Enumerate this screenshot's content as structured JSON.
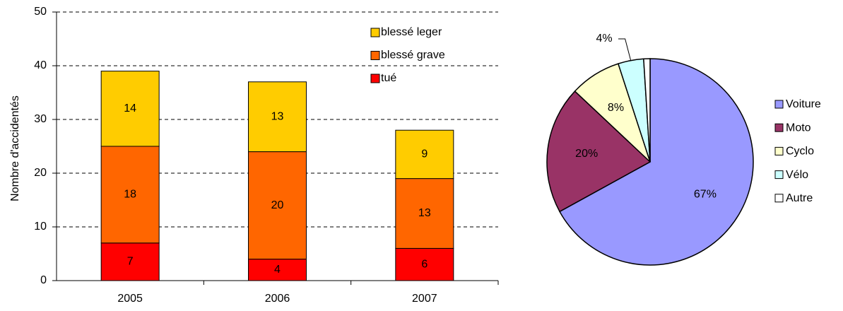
{
  "chart_data": [
    {
      "type": "bar",
      "stacked": true,
      "y_label": "Nombre d'accidentés",
      "categories": [
        "2005",
        "2006",
        "2007"
      ],
      "series": [
        {
          "name": "tué",
          "color": "#ff0000",
          "values": [
            7,
            4,
            6
          ]
        },
        {
          "name": "blessé grave",
          "color": "#ff6600",
          "values": [
            18,
            20,
            13
          ]
        },
        {
          "name": "blessé leger",
          "color": "#ffcc00",
          "values": [
            14,
            13,
            9
          ]
        }
      ],
      "ylim": [
        0,
        50
      ],
      "yticks": [
        0,
        10,
        20,
        30,
        40,
        50
      ],
      "grid": true,
      "legend": "top-right"
    },
    {
      "type": "pie",
      "categories": [
        "Voiture",
        "Moto",
        "Cyclo",
        "Vélo",
        "Autre"
      ],
      "values": [
        67,
        20,
        8,
        4,
        1
      ],
      "value_labels": [
        "67%",
        "20%",
        "8%",
        "4%",
        null
      ],
      "colors": [
        "#9999ff",
        "#993366",
        "#ffffcc",
        "#ccffff",
        "#ffffff"
      ],
      "legend": "right"
    }
  ]
}
